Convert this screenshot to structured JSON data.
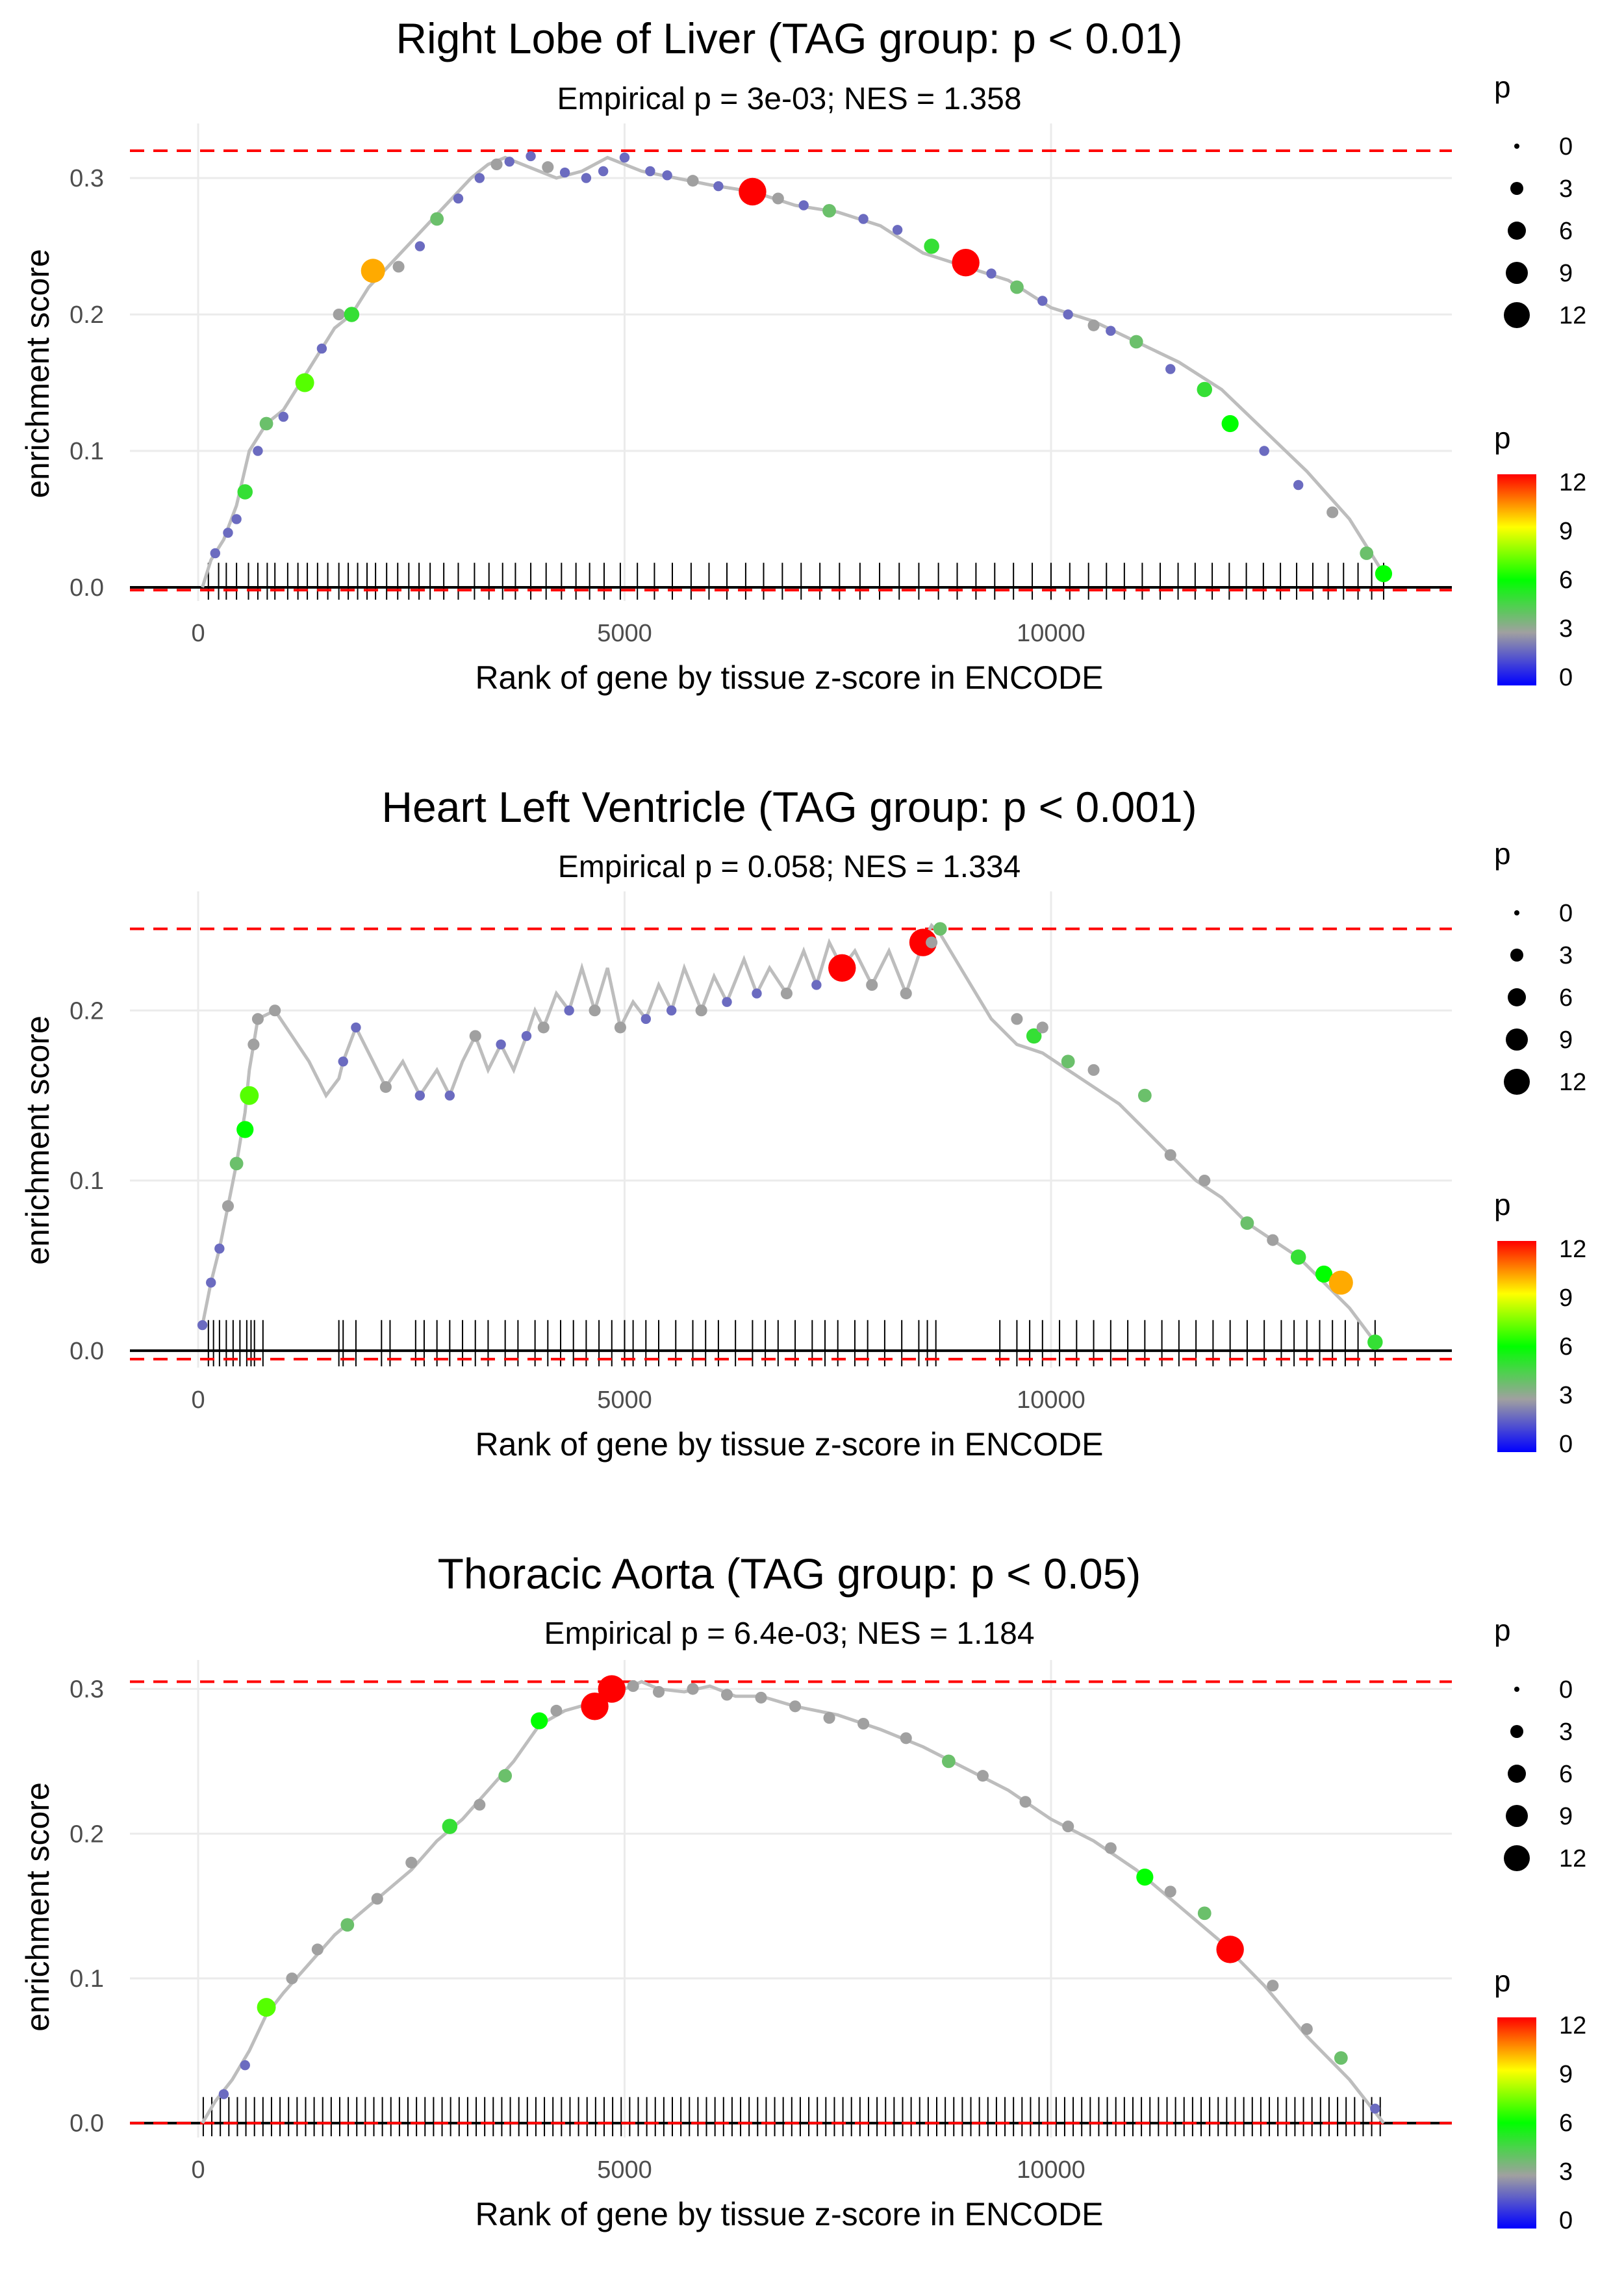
{
  "legend": {
    "size_title": "p",
    "size_values": [
      "0",
      "3",
      "6",
      "9",
      "12"
    ],
    "color_title": "p",
    "color_ticks": [
      "12",
      "9",
      "6",
      "3",
      "0"
    ],
    "color_stops": [
      "#0000ff",
      "#a0a0a0",
      "#00ff00",
      "#ffff00",
      "#ff0000"
    ]
  },
  "colors": {
    "threshold_line": "#ff0000",
    "curve": "#bdbdbd",
    "grid": "#ebebeb",
    "ticks": "#000000"
  },
  "chart_data": [
    {
      "type": "line",
      "title": "Right Lobe of Liver (TAG group: p < 0.01)",
      "subtitle": "Empirical p = 3e-03; NES = 1.358",
      "xlabel": "Rank of gene by tissue z-score in ENCODE",
      "ylabel": "enrichment score",
      "xlim": [
        -800,
        14700
      ],
      "ylim": [
        -0.01,
        0.34
      ],
      "xticks": [
        0,
        5000,
        10000
      ],
      "xtick_labels": [
        "0",
        "5000",
        "10000"
      ],
      "yticks": [
        0.0,
        0.1,
        0.2,
        0.3
      ],
      "ytick_labels": [
        "0.0",
        "0.1",
        "0.2",
        "0.3"
      ],
      "max_es": 0.32,
      "min_es": -0.002,
      "curve": {
        "x": [
          50,
          150,
          300,
          450,
          600,
          800,
          1000,
          1200,
          1400,
          1600,
          1800,
          2000,
          2300,
          2600,
          2900,
          3200,
          3400,
          3600,
          3800,
          4000,
          4200,
          4500,
          4800,
          5200,
          5600,
          6000,
          6500,
          7000,
          7500,
          8000,
          8500,
          9000,
          9500,
          10000,
          10500,
          11000,
          11500,
          12000,
          12500,
          13000,
          13500,
          13900
        ],
        "y": [
          0.0,
          0.02,
          0.035,
          0.06,
          0.1,
          0.12,
          0.13,
          0.15,
          0.17,
          0.19,
          0.2,
          0.22,
          0.24,
          0.26,
          0.28,
          0.3,
          0.31,
          0.315,
          0.31,
          0.305,
          0.3,
          0.305,
          0.315,
          0.305,
          0.3,
          0.295,
          0.29,
          0.28,
          0.275,
          0.265,
          0.245,
          0.235,
          0.225,
          0.205,
          0.195,
          0.18,
          0.165,
          0.145,
          0.115,
          0.085,
          0.05,
          0.01
        ]
      },
      "points": {
        "x": [
          200,
          350,
          450,
          550,
          700,
          800,
          1000,
          1250,
          1450,
          1650,
          1800,
          2050,
          2350,
          2600,
          2800,
          3050,
          3300,
          3500,
          3650,
          3900,
          4100,
          4300,
          4550,
          4750,
          5000,
          5300,
          5500,
          5800,
          6100,
          6500,
          6800,
          7100,
          7400,
          7800,
          8200,
          8600,
          9000,
          9300,
          9600,
          9900,
          10200,
          10500,
          10700,
          11000,
          11400,
          11800,
          12100,
          12500,
          12900,
          13300,
          13700,
          13900
        ],
        "y": [
          0.025,
          0.04,
          0.05,
          0.07,
          0.1,
          0.12,
          0.125,
          0.15,
          0.175,
          0.2,
          0.2,
          0.232,
          0.235,
          0.25,
          0.27,
          0.285,
          0.3,
          0.31,
          0.312,
          0.316,
          0.308,
          0.304,
          0.3,
          0.305,
          0.315,
          0.305,
          0.302,
          0.298,
          0.294,
          0.29,
          0.285,
          0.28,
          0.276,
          0.27,
          0.262,
          0.25,
          0.238,
          0.23,
          0.22,
          0.21,
          0.2,
          0.192,
          0.188,
          0.18,
          0.16,
          0.145,
          0.12,
          0.1,
          0.075,
          0.055,
          0.025,
          0.01
        ],
        "p": [
          2,
          2,
          2,
          5,
          2,
          4,
          2,
          7,
          2,
          3,
          5,
          10,
          3,
          2,
          4,
          2,
          2,
          3,
          2,
          2,
          3,
          2,
          2,
          2,
          2,
          2,
          2,
          3,
          2,
          12,
          3,
          2,
          4,
          2,
          2,
          5,
          12,
          2,
          4,
          2,
          2,
          3,
          2,
          4,
          2,
          5,
          6,
          2,
          2,
          3,
          4,
          6
        ]
      },
      "gene_ticks": [
        120,
        240,
        330,
        450,
        590,
        700,
        810,
        900,
        1050,
        1170,
        1280,
        1400,
        1520,
        1650,
        1760,
        1870,
        1980,
        2080,
        2210,
        2340,
        2470,
        2590,
        2720,
        2880,
        3050,
        3240,
        3410,
        3570,
        3720,
        3900,
        4080,
        4260,
        4430,
        4590,
        4760,
        4950,
        5150,
        5350,
        5560,
        5780,
        5990,
        6200,
        6420,
        6630,
        6850,
        7070,
        7290,
        7520,
        7760,
        7990,
        8220,
        8450,
        8680,
        8900,
        9120,
        9340,
        9560,
        9780,
        10000,
        10220,
        10440,
        10650,
        10860,
        11070,
        11280,
        11490,
        11690,
        11890,
        12090,
        12290,
        12490,
        12690,
        12880,
        13070,
        13250,
        13430,
        13600,
        13760,
        13900
      ]
    },
    {
      "type": "line",
      "title": "Heart Left Ventricle (TAG group: p < 0.001)",
      "subtitle": "Empirical p = 0.058; NES = 1.334",
      "xlabel": "Rank of gene by tissue z-score in ENCODE",
      "ylabel": "enrichment score",
      "xlim": [
        -800,
        14700
      ],
      "ylim": [
        -0.01,
        0.27
      ],
      "xticks": [
        0,
        5000,
        10000
      ],
      "xtick_labels": [
        "0",
        "5000",
        "10000"
      ],
      "yticks": [
        0.0,
        0.1,
        0.2
      ],
      "ytick_labels": [
        "0.0",
        "0.1",
        "0.2"
      ],
      "max_es": 0.248,
      "min_es": -0.005,
      "curve": {
        "x": [
          50,
          150,
          250,
          350,
          450,
          550,
          600,
          650,
          700,
          900,
          1100,
          1300,
          1500,
          1650,
          1700,
          1850,
          2050,
          2200,
          2400,
          2600,
          2800,
          2950,
          3100,
          3250,
          3400,
          3550,
          3700,
          3850,
          3950,
          4050,
          4200,
          4350,
          4500,
          4650,
          4800,
          4950,
          5100,
          5250,
          5400,
          5550,
          5700,
          5900,
          6050,
          6200,
          6400,
          6550,
          6700,
          6900,
          7100,
          7250,
          7400,
          7550,
          7700,
          7900,
          8100,
          8300,
          8500,
          8600,
          8700,
          9000,
          9300,
          9600,
          9900,
          10200,
          10500,
          10800,
          11100,
          11400,
          11700,
          12000,
          12300,
          12600,
          12900,
          13200,
          13500,
          13800
        ],
        "y": [
          0.015,
          0.04,
          0.06,
          0.085,
          0.11,
          0.14,
          0.165,
          0.18,
          0.195,
          0.2,
          0.185,
          0.17,
          0.15,
          0.16,
          0.17,
          0.19,
          0.17,
          0.155,
          0.17,
          0.15,
          0.165,
          0.15,
          0.17,
          0.185,
          0.165,
          0.18,
          0.165,
          0.185,
          0.2,
          0.19,
          0.21,
          0.2,
          0.225,
          0.2,
          0.225,
          0.19,
          0.205,
          0.195,
          0.215,
          0.2,
          0.225,
          0.2,
          0.22,
          0.205,
          0.23,
          0.21,
          0.225,
          0.21,
          0.235,
          0.215,
          0.24,
          0.225,
          0.235,
          0.215,
          0.235,
          0.21,
          0.24,
          0.25,
          0.245,
          0.22,
          0.195,
          0.18,
          0.175,
          0.165,
          0.155,
          0.145,
          0.13,
          0.115,
          0.1,
          0.09,
          0.075,
          0.065,
          0.055,
          0.04,
          0.025,
          0.005
        ]
      },
      "points": {
        "x": [
          50,
          150,
          250,
          350,
          450,
          550,
          600,
          650,
          700,
          900,
          1700,
          1850,
          2200,
          2600,
          2950,
          3250,
          3550,
          3850,
          4050,
          4350,
          4650,
          4950,
          5250,
          5550,
          5900,
          6200,
          6550,
          6900,
          7250,
          7550,
          7900,
          8300,
          8500,
          8600,
          8700,
          9600,
          9800,
          9900,
          10200,
          10500,
          11100,
          11400,
          11800,
          12300,
          12600,
          12900,
          13200,
          13400,
          13800
        ],
        "y": [
          0.015,
          0.04,
          0.06,
          0.085,
          0.11,
          0.13,
          0.15,
          0.18,
          0.195,
          0.2,
          0.17,
          0.19,
          0.155,
          0.15,
          0.15,
          0.185,
          0.18,
          0.185,
          0.19,
          0.2,
          0.2,
          0.19,
          0.195,
          0.2,
          0.2,
          0.205,
          0.21,
          0.21,
          0.215,
          0.225,
          0.215,
          0.21,
          0.24,
          0.24,
          0.248,
          0.195,
          0.185,
          0.19,
          0.17,
          0.165,
          0.15,
          0.115,
          0.1,
          0.075,
          0.065,
          0.055,
          0.045,
          0.04,
          0.005
        ],
        "p": [
          2,
          2,
          2,
          3,
          4,
          6,
          7,
          3,
          3,
          3,
          2,
          2,
          3,
          2,
          2,
          3,
          2,
          2,
          3,
          2,
          3,
          3,
          2,
          2,
          3,
          2,
          2,
          3,
          2,
          12,
          3,
          3,
          12,
          3,
          4,
          3,
          5,
          3,
          4,
          3,
          4,
          3,
          3,
          4,
          3,
          5,
          6,
          10,
          5
        ]
      },
      "gene_ticks": [
        120,
        180,
        250,
        330,
        410,
        490,
        570,
        620,
        660,
        760,
        1650,
        1700,
        1850,
        2150,
        2250,
        2550,
        2650,
        2800,
        2950,
        3100,
        3250,
        3400,
        3600,
        3750,
        3950,
        4100,
        4250,
        4400,
        4550,
        4700,
        4850,
        5000,
        5100,
        5250,
        5400,
        5600,
        5800,
        5950,
        6100,
        6300,
        6500,
        6650,
        6800,
        7000,
        7200,
        7350,
        7500,
        7700,
        7850,
        8050,
        8250,
        8450,
        8550,
        8650,
        9400,
        9600,
        9750,
        9900,
        10100,
        10300,
        10500,
        10700,
        10900,
        11100,
        11300,
        11500,
        11700,
        11900,
        12100,
        12300,
        12500,
        12700,
        12850,
        13000,
        13150,
        13300,
        13450,
        13600,
        13800
      ]
    },
    {
      "type": "line",
      "title": "Thoracic Aorta (TAG group: p < 0.05)",
      "subtitle": "Empirical p = 6.4e-03; NES = 1.184",
      "xlabel": "Rank of gene by tissue z-score in ENCODE",
      "ylabel": "enrichment score",
      "xlim": [
        -800,
        14700
      ],
      "ylim": [
        -0.01,
        0.32
      ],
      "xticks": [
        0,
        5000,
        10000
      ],
      "xtick_labels": [
        "0",
        "5000",
        "10000"
      ],
      "yticks": [
        0.0,
        0.1,
        0.2,
        0.3
      ],
      "ytick_labels": [
        "0.0",
        "0.1",
        "0.2",
        "0.3"
      ],
      "max_es": 0.305,
      "min_es": 0.0,
      "curve": {
        "x": [
          50,
          200,
          400,
          600,
          800,
          1000,
          1300,
          1600,
          1900,
          2200,
          2500,
          2800,
          3100,
          3400,
          3700,
          4000,
          4300,
          4600,
          4800,
          5000,
          5200,
          5400,
          5700,
          6000,
          6300,
          6600,
          7000,
          7500,
          8000,
          8500,
          9000,
          9500,
          10000,
          10500,
          11000,
          11500,
          12000,
          12500,
          13000,
          13500,
          13900
        ],
        "y": [
          0.0,
          0.015,
          0.03,
          0.05,
          0.075,
          0.09,
          0.11,
          0.13,
          0.145,
          0.16,
          0.175,
          0.195,
          0.21,
          0.23,
          0.25,
          0.275,
          0.285,
          0.29,
          0.295,
          0.3,
          0.305,
          0.3,
          0.298,
          0.302,
          0.295,
          0.295,
          0.288,
          0.282,
          0.272,
          0.26,
          0.245,
          0.23,
          0.21,
          0.195,
          0.175,
          0.15,
          0.125,
          0.095,
          0.06,
          0.03,
          0.0
        ]
      },
      "points": {
        "x": [
          300,
          550,
          800,
          1100,
          1400,
          1750,
          2100,
          2500,
          2950,
          3300,
          3600,
          4000,
          4200,
          4650,
          4850,
          5100,
          5400,
          5800,
          6200,
          6600,
          7000,
          7400,
          7800,
          8300,
          8800,
          9200,
          9700,
          10200,
          10700,
          11100,
          11400,
          11800,
          12100,
          12600,
          13000,
          13400,
          13800
        ],
        "y": [
          0.02,
          0.04,
          0.08,
          0.1,
          0.12,
          0.137,
          0.155,
          0.18,
          0.205,
          0.22,
          0.24,
          0.278,
          0.285,
          0.288,
          0.3,
          0.302,
          0.298,
          0.3,
          0.296,
          0.294,
          0.288,
          0.28,
          0.276,
          0.266,
          0.25,
          0.24,
          0.222,
          0.205,
          0.19,
          0.17,
          0.16,
          0.145,
          0.12,
          0.095,
          0.065,
          0.045,
          0.01
        ],
        "p": [
          2,
          2,
          7,
          3,
          3,
          4,
          3,
          3,
          5,
          3,
          4,
          6,
          3,
          12,
          12,
          3,
          3,
          3,
          3,
          3,
          3,
          3,
          3,
          3,
          4,
          3,
          3,
          3,
          3,
          6,
          3,
          4,
          12,
          3,
          3,
          4,
          2
        ]
      },
      "gene_ticks": [
        60,
        160,
        260,
        360,
        460,
        560,
        660,
        760,
        860,
        960,
        1060,
        1160,
        1260,
        1360,
        1460,
        1560,
        1660,
        1760,
        1860,
        1960,
        2060,
        2160,
        2260,
        2360,
        2460,
        2560,
        2660,
        2760,
        2860,
        2960,
        3060,
        3160,
        3260,
        3360,
        3460,
        3560,
        3660,
        3760,
        3860,
        3960,
        4060,
        4160,
        4260,
        4360,
        4460,
        4560,
        4660,
        4760,
        4860,
        4960,
        5060,
        5160,
        5260,
        5360,
        5460,
        5560,
        5660,
        5760,
        5860,
        5960,
        6060,
        6160,
        6260,
        6360,
        6460,
        6560,
        6660,
        6760,
        6860,
        6960,
        7060,
        7160,
        7260,
        7360,
        7460,
        7560,
        7660,
        7760,
        7860,
        7960,
        8060,
        8160,
        8260,
        8360,
        8460,
        8560,
        8660,
        8760,
        8860,
        8960,
        9060,
        9160,
        9260,
        9360,
        9460,
        9560,
        9660,
        9760,
        9860,
        9960,
        10060,
        10160,
        10260,
        10360,
        10460,
        10560,
        10660,
        10760,
        10860,
        10960,
        11060,
        11160,
        11260,
        11360,
        11460,
        11560,
        11660,
        11760,
        11860,
        11960,
        12060,
        12160,
        12260,
        12360,
        12460,
        12560,
        12660,
        12760,
        12860,
        12960,
        13060,
        13160,
        13260,
        13360,
        13460,
        13560,
        13660,
        13760,
        13860
      ]
    }
  ]
}
